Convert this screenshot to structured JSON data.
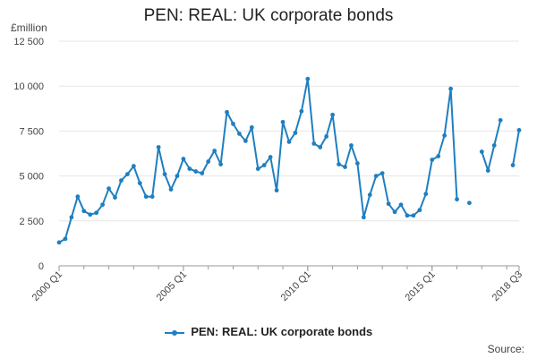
{
  "chart_data": {
    "type": "line",
    "title": "PEN: REAL: UK corporate bonds",
    "ylabel": "£million",
    "ylim": [
      0,
      12500
    ],
    "yticks": [
      {
        "value": 0,
        "label": "0"
      },
      {
        "value": 2500,
        "label": "2 500"
      },
      {
        "value": 5000,
        "label": "5 000"
      },
      {
        "value": 7500,
        "label": "7 500"
      },
      {
        "value": 10000,
        "label": "10 000"
      },
      {
        "value": 12500,
        "label": "12 500"
      }
    ],
    "xticks": [
      {
        "index": 0,
        "label": "2000 Q1"
      },
      {
        "index": 20,
        "label": "2005 Q1"
      },
      {
        "index": 40,
        "label": "2010 Q1"
      },
      {
        "index": 60,
        "label": "2015 Q1"
      },
      {
        "index": 74,
        "label": "2018 Q3"
      }
    ],
    "grid": true,
    "legend_position": "bottom",
    "series": [
      {
        "name": "PEN: REAL: UK corporate bonds",
        "color": "#1f7fc0",
        "values": [
          1300,
          1500,
          2700,
          3850,
          3050,
          2850,
          2950,
          3400,
          4300,
          3800,
          4750,
          5100,
          5550,
          4600,
          3850,
          3850,
          6600,
          5100,
          4250,
          5000,
          5950,
          5400,
          5250,
          5150,
          5800,
          6400,
          5650,
          8550,
          7900,
          7350,
          6950,
          7700,
          5400,
          5600,
          6050,
          4200,
          8000,
          6900,
          7400,
          8600,
          10400,
          6800,
          6600,
          7200,
          8400,
          5650,
          5500,
          6700,
          5700,
          2700,
          3950,
          5000,
          5150,
          3450,
          3000,
          3400,
          2800,
          2800,
          3100,
          4000,
          5900,
          6100,
          7250,
          9850,
          3700,
          null,
          3500,
          null,
          6350,
          5300,
          6700,
          8100,
          null,
          5600,
          7550
        ]
      }
    ]
  },
  "source_label": "Source:"
}
